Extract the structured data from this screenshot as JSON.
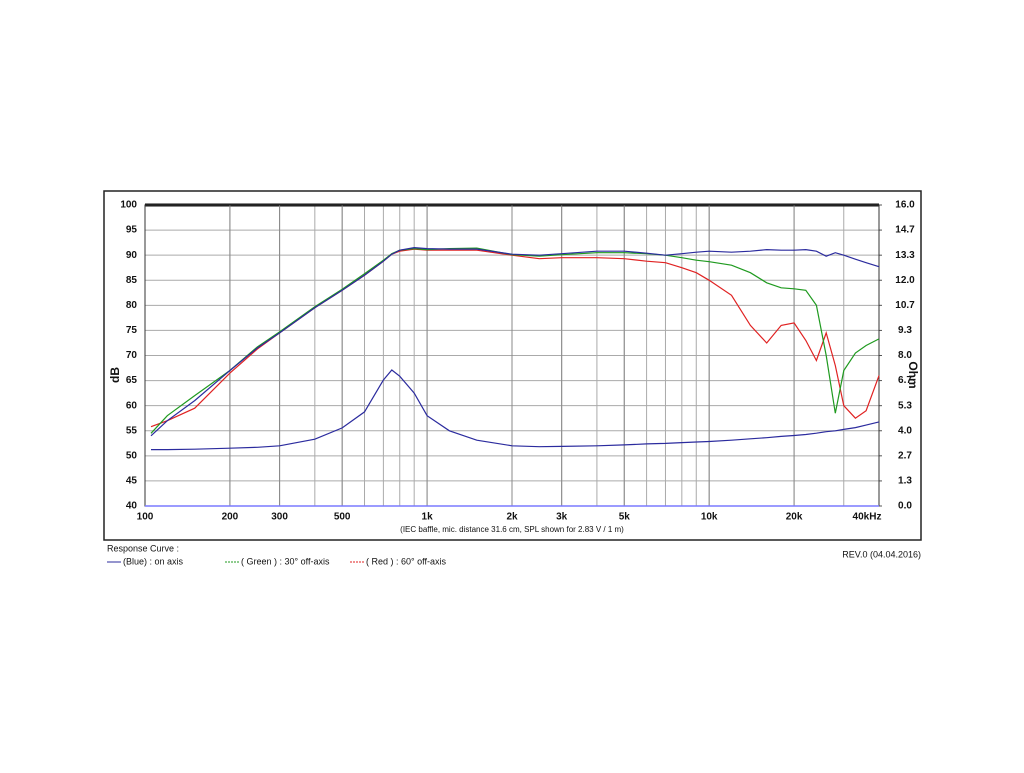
{
  "chart_data": {
    "type": "line",
    "x_log": true,
    "grid": true,
    "ylabel": "dB",
    "y2label": "Ohm",
    "xlabel": "(IEC baffle, mic. distance 31.6 cm, SPL shown for 2.83 V / 1 m)",
    "legend_title": "Response Curve :",
    "revision": "REV.0 (04.04.2016)",
    "xlim": [
      100,
      40000
    ],
    "xticks": [
      100,
      200,
      300,
      500,
      {
        "value": 1000,
        "label": "1k"
      },
      {
        "value": 2000,
        "label": "2k"
      },
      {
        "value": 3000,
        "label": "3k"
      },
      {
        "value": 5000,
        "label": "5k"
      },
      {
        "value": 10000,
        "label": "10k"
      },
      {
        "value": 20000,
        "label": "20k"
      },
      {
        "value": 40000,
        "label": "40kHz"
      }
    ],
    "ylim": [
      40,
      100
    ],
    "yticks": [
      40,
      45,
      50,
      55,
      60,
      65,
      70,
      75,
      80,
      85,
      90,
      95,
      100
    ],
    "y2lim": [
      0,
      16
    ],
    "y2ticks": [
      {
        "value": 0,
        "label": "0.0"
      },
      {
        "value": 1.333,
        "label": "1.3"
      },
      {
        "value": 2.667,
        "label": "2.7"
      },
      {
        "value": 4,
        "label": "4.0"
      },
      {
        "value": 5.333,
        "label": "5.3"
      },
      {
        "value": 6.667,
        "label": "6.7"
      },
      {
        "value": 8,
        "label": "8.0"
      },
      {
        "value": 9.333,
        "label": "9.3"
      },
      {
        "value": 10.667,
        "label": "10.7"
      },
      {
        "value": 12,
        "label": "12.0"
      },
      {
        "value": 13.333,
        "label": "13.3"
      },
      {
        "value": 14.667,
        "label": "14.7"
      },
      {
        "value": 16,
        "label": "16.0"
      }
    ],
    "x": [
      105,
      120,
      150,
      200,
      250,
      300,
      400,
      500,
      600,
      700,
      750,
      800,
      900,
      1000,
      1200,
      1500,
      2000,
      2500,
      3000,
      4000,
      5000,
      6000,
      7000,
      8000,
      9000,
      10000,
      12000,
      14000,
      16000,
      18000,
      20000,
      22000,
      24000,
      26000,
      28000,
      30000,
      33000,
      36000,
      40000
    ],
    "series": [
      {
        "name": "(Blue)  : on axis",
        "color": "#2b2b9e",
        "values": [
          54,
          57,
          61,
          67,
          71.5,
          74.5,
          79.5,
          83,
          86,
          88.8,
          90.2,
          91,
          91.5,
          91.3,
          91.2,
          91.2,
          90.2,
          90,
          90.3,
          90.8,
          90.8,
          90.4,
          90,
          90.3,
          90.6,
          90.8,
          90.6,
          90.8,
          91.1,
          91,
          91,
          91.1,
          90.8,
          89.8,
          90.5,
          90,
          89.2,
          88.5,
          87.7
        ]
      },
      {
        "name": "( Green ) : 30° off-axis",
        "color": "#1f9a1f",
        "values": [
          54.5,
          58,
          62,
          67,
          71.7,
          74.7,
          79.7,
          83.2,
          86.3,
          89,
          90.3,
          91,
          91.3,
          91.1,
          91.3,
          91.4,
          90.1,
          89.8,
          90.1,
          90.5,
          90.5,
          90.3,
          90,
          89.5,
          89,
          88.7,
          88,
          86.5,
          84.5,
          83.5,
          83.3,
          83,
          80,
          70,
          58.5,
          67,
          70.5,
          72,
          73.3
        ]
      },
      {
        "name": "( Red ) : 60° off-axis",
        "color": "#e02222",
        "values": [
          55.8,
          57,
          59.5,
          66.5,
          71.3,
          74.5,
          79.5,
          83,
          86,
          88.8,
          90.2,
          90.8,
          91.2,
          91,
          91,
          91,
          90,
          89.3,
          89.5,
          89.5,
          89.3,
          88.8,
          88.5,
          87.5,
          86.5,
          85,
          82,
          76,
          72.5,
          76,
          76.5,
          73,
          69,
          74.5,
          68,
          60,
          57.5,
          59,
          66
        ]
      },
      {
        "color": "#2b2b9e",
        "axis": "y2",
        "values": [
          3.0,
          3.0,
          3.02,
          3.07,
          3.12,
          3.2,
          3.55,
          4.15,
          5.0,
          6.7,
          7.23,
          6.9,
          6.0,
          4.8,
          4.0,
          3.5,
          3.2,
          3.15,
          3.17,
          3.2,
          3.25,
          3.3,
          3.33,
          3.37,
          3.4,
          3.43,
          3.5,
          3.57,
          3.63,
          3.7,
          3.75,
          3.8,
          3.87,
          3.95,
          4.0,
          4.07,
          4.17,
          4.3,
          4.47
        ]
      }
    ]
  }
}
